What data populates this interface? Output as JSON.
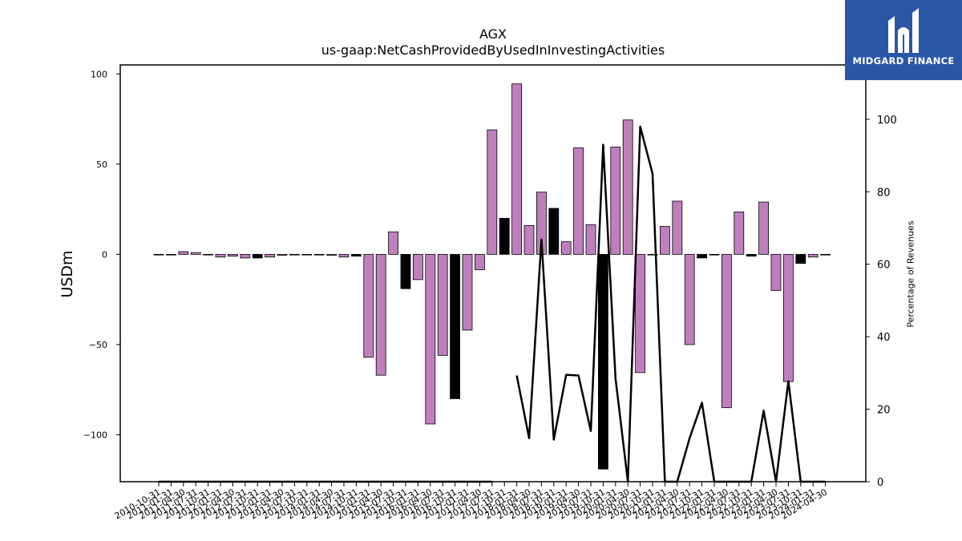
{
  "chart_data": {
    "type": "bar",
    "title": "AGX",
    "subtitle": "us-gaap:NetCashProvidedByUsedInInvestingActivities",
    "ylabel": "USDm",
    "y2label": "Percentage of Revenues",
    "ylim": [
      -126,
      105
    ],
    "y2lim": [
      0,
      115
    ],
    "yticks": [
      -100,
      -50,
      0,
      50,
      100
    ],
    "y2ticks": [
      0,
      20,
      40,
      60,
      80,
      100
    ],
    "grid": false,
    "bar_color": "#bf7fbf",
    "highlight_color": "#000000",
    "line_color": "#000000",
    "categories": [
      "2010-10-31",
      "2011-01-31",
      "2011-04-30",
      "2011-07-31",
      "2011-10-31",
      "2012-01-31",
      "2012-04-30",
      "2012-07-31",
      "2012-10-31",
      "2013-01-31",
      "2013-04-30",
      "2013-07-31",
      "2013-10-31",
      "2014-01-31",
      "2014-04-30",
      "2014-07-31",
      "2014-10-31",
      "2015-01-31",
      "2015-04-30",
      "2015-07-31",
      "2015-10-31",
      "2016-01-31",
      "2016-04-30",
      "2016-07-31",
      "2016-10-31",
      "2017-01-31",
      "2017-04-30",
      "2017-07-31",
      "2017-10-31",
      "2018-01-31",
      "2018-04-30",
      "2018-07-31",
      "2018-10-31",
      "2019-01-31",
      "2019-04-30",
      "2019-07-31",
      "2019-10-31",
      "2020-01-31",
      "2020-04-30",
      "2020-07-31",
      "2020-10-31",
      "2021-01-31",
      "2021-04-30",
      "2021-07-31",
      "2021-10-31",
      "2022-01-31",
      "2022-04-30",
      "2022-07-31",
      "2022-10-31",
      "2023-01-31",
      "2023-04-30",
      "2023-07-31",
      "2023-10-31",
      "2024-01-31",
      "2024-04-30"
    ],
    "values": [
      -0.3,
      -0.3,
      1.5,
      1.0,
      -0.3,
      -1.5,
      -1.0,
      -2.0,
      -2.0,
      -1.5,
      -0.5,
      -0.3,
      -0.3,
      -0.3,
      -0.5,
      -1.5,
      -1.0,
      -57.0,
      -67.0,
      12.5,
      -19.0,
      -14.0,
      -94.0,
      -56.0,
      -80.0,
      -42.0,
      -8.5,
      69.0,
      20.0,
      94.5,
      16.0,
      34.5,
      25.5,
      7.0,
      59.0,
      16.5,
      -119.0,
      59.5,
      74.5,
      -65.5,
      -0.3,
      15.5,
      29.5,
      -50.0,
      -2.0,
      -0.3,
      -85.0,
      23.5,
      -1.0,
      29.0,
      -20.0,
      -70.5,
      -5.0,
      -1.5,
      0
    ],
    "highlighted": [
      false,
      false,
      false,
      false,
      true,
      false,
      false,
      false,
      true,
      false,
      false,
      false,
      false,
      false,
      false,
      false,
      true,
      false,
      false,
      false,
      true,
      false,
      false,
      false,
      true,
      false,
      false,
      false,
      true,
      false,
      false,
      false,
      true,
      false,
      false,
      false,
      true,
      false,
      false,
      false,
      false,
      false,
      false,
      false,
      true,
      false,
      false,
      false,
      true,
      false,
      false,
      false,
      true,
      false,
      false
    ],
    "series": [
      {
        "name": "",
        "type": "line",
        "axis": "right",
        "values": [
          0,
          0,
          0,
          0,
          0,
          0,
          0,
          0,
          0,
          0,
          0,
          0,
          0,
          0,
          0,
          0,
          0,
          0,
          0,
          0,
          0,
          0,
          0,
          0,
          0,
          0,
          0,
          0,
          null,
          29.3,
          12,
          66.8,
          11.6,
          29.5,
          29.3,
          14,
          93,
          28.5,
          0,
          98,
          85,
          0,
          0,
          12,
          21.8,
          0,
          0,
          0,
          0,
          19.6,
          0,
          27.7,
          0,
          0,
          0
        ]
      }
    ]
  },
  "logo": {
    "text": "MIDGARD FINANCE",
    "color": "#2a56a8"
  }
}
